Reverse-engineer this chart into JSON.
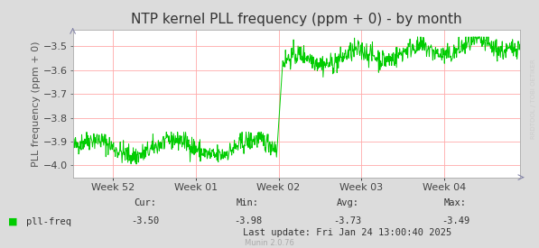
{
  "title": "NTP kernel PLL frequency (ppm + 0) - by month",
  "ylabel": "PLL frequency (ppm + 0)",
  "bg_color": "#dcdcdc",
  "plot_bg_color": "#ffffff",
  "grid_color": "#ffaaaa",
  "line_color": "#00cc00",
  "ylim": [
    -4.05,
    -3.43
  ],
  "yticks": [
    -4.0,
    -3.9,
    -3.8,
    -3.7,
    -3.6,
    -3.5
  ],
  "x_labels": [
    "Week 52",
    "Week 01",
    "Week 02",
    "Week 03",
    "Week 04"
  ],
  "watermark": "RRDTOOL / TOBI OETIKER",
  "legend_label": "pll-freq",
  "legend_color": "#00cc00",
  "stats_cur": "-3.50",
  "stats_min": "-3.98",
  "stats_avg": "-3.73",
  "stats_max": "-3.49",
  "last_update": "Last update: Fri Jan 24 13:00:40 2025",
  "munin_version": "Munin 2.0.76",
  "title_fontsize": 11,
  "axis_label_fontsize": 8,
  "tick_fontsize": 8,
  "stats_fontsize": 7.5,
  "munin_fontsize": 6
}
